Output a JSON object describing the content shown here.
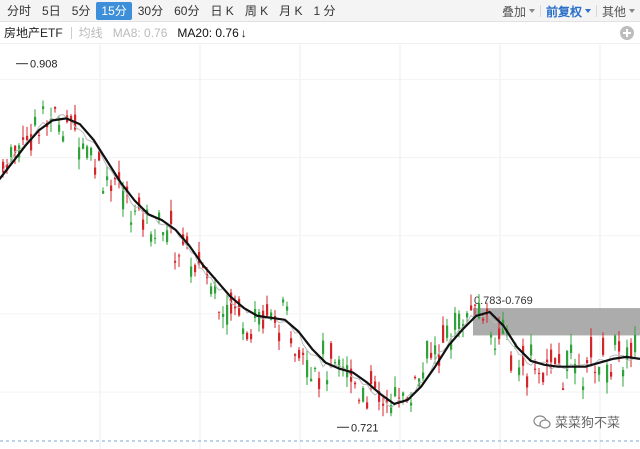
{
  "toolbar": {
    "timeframes": [
      {
        "label": "分时",
        "active": false
      },
      {
        "label": "5日",
        "active": false
      },
      {
        "label": "5分",
        "active": false
      },
      {
        "label": "15分",
        "active": true
      },
      {
        "label": "30分",
        "active": false
      },
      {
        "label": "60分",
        "active": false
      },
      {
        "label": "日 K",
        "active": false
      },
      {
        "label": "周 K",
        "active": false
      },
      {
        "label": "月 K",
        "active": false
      },
      {
        "label": "1 分",
        "active": false
      }
    ],
    "overlay_label": "叠加",
    "adjust_label": "前复权",
    "other_label": "其他"
  },
  "legend": {
    "name": "房地产ETF",
    "ma_type": "均线",
    "ma8": "MA8: 0.76",
    "ma20": "MA20: 0.76",
    "ma20_arrow": "↓"
  },
  "annotations": {
    "high": "0.908",
    "low": "0.721",
    "zone": "0.783-0.769"
  },
  "watermark": "菜菜狗不菜",
  "colors": {
    "up": "#2fa33a",
    "down": "#d4252b",
    "ma20": "#111111",
    "ma8": "#bbbbbb",
    "zone": "#9e9e9e",
    "active_tab": "#3c8fd8"
  },
  "chart_data": {
    "type": "candlestick",
    "title": "房地产ETF",
    "ylim": [
      0.715,
      0.915
    ],
    "high": 0.908,
    "low": 0.721,
    "resistance_zone": [
      0.769,
      0.783
    ],
    "ma20": [
      0.848,
      0.857,
      0.866,
      0.874,
      0.879,
      0.88,
      0.877,
      0.869,
      0.858,
      0.847,
      0.838,
      0.831,
      0.828,
      0.823,
      0.815,
      0.805,
      0.797,
      0.789,
      0.783,
      0.779,
      0.778,
      0.777,
      0.771,
      0.762,
      0.755,
      0.752,
      0.75,
      0.745,
      0.739,
      0.734,
      0.736,
      0.743,
      0.753,
      0.764,
      0.772,
      0.779,
      0.781,
      0.774,
      0.763,
      0.756,
      0.754,
      0.753,
      0.753,
      0.753,
      0.755,
      0.757,
      0.758,
      0.757
    ]
  }
}
